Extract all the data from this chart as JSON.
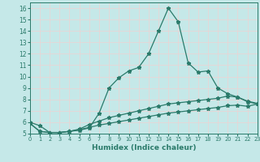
{
  "xlabel": "Humidex (Indice chaleur)",
  "bg_color": "#c5e8e8",
  "grid_color": "#e8d5d5",
  "line_color": "#2a7a6a",
  "x_values": [
    0,
    1,
    2,
    3,
    4,
    5,
    6,
    7,
    8,
    9,
    10,
    11,
    12,
    13,
    14,
    15,
    16,
    17,
    18,
    19,
    20,
    21,
    22,
    23
  ],
  "line1": [
    6.0,
    5.7,
    5.1,
    5.1,
    5.2,
    5.3,
    5.5,
    6.8,
    9.0,
    9.9,
    10.5,
    10.8,
    12.0,
    14.0,
    16.0,
    14.8,
    11.2,
    10.4,
    10.5,
    9.0,
    8.5,
    8.2,
    7.8,
    7.6
  ],
  "line2": [
    5.9,
    5.2,
    5.1,
    5.1,
    5.2,
    5.4,
    5.8,
    6.1,
    6.4,
    6.6,
    6.8,
    7.0,
    7.2,
    7.4,
    7.6,
    7.7,
    7.8,
    7.9,
    8.0,
    8.1,
    8.3,
    8.2,
    7.85,
    7.65
  ],
  "line3": [
    5.9,
    5.2,
    5.1,
    5.1,
    5.2,
    5.35,
    5.55,
    5.75,
    5.9,
    6.05,
    6.2,
    6.35,
    6.5,
    6.65,
    6.8,
    6.9,
    7.0,
    7.1,
    7.2,
    7.3,
    7.45,
    7.5,
    7.4,
    7.6
  ],
  "ylim": [
    5,
    16.5
  ],
  "xlim": [
    0,
    23
  ],
  "yticks": [
    5,
    6,
    7,
    8,
    9,
    10,
    11,
    12,
    13,
    14,
    15,
    16
  ],
  "xticks": [
    0,
    1,
    2,
    3,
    4,
    5,
    6,
    7,
    8,
    9,
    10,
    11,
    12,
    13,
    14,
    15,
    16,
    17,
    18,
    19,
    20,
    21,
    22,
    23
  ],
  "xlabel_fontsize": 6.5,
  "tick_fontsize": 5.5,
  "xtick_fontsize": 4.8,
  "marker_size": 3.5,
  "line_width": 0.9
}
